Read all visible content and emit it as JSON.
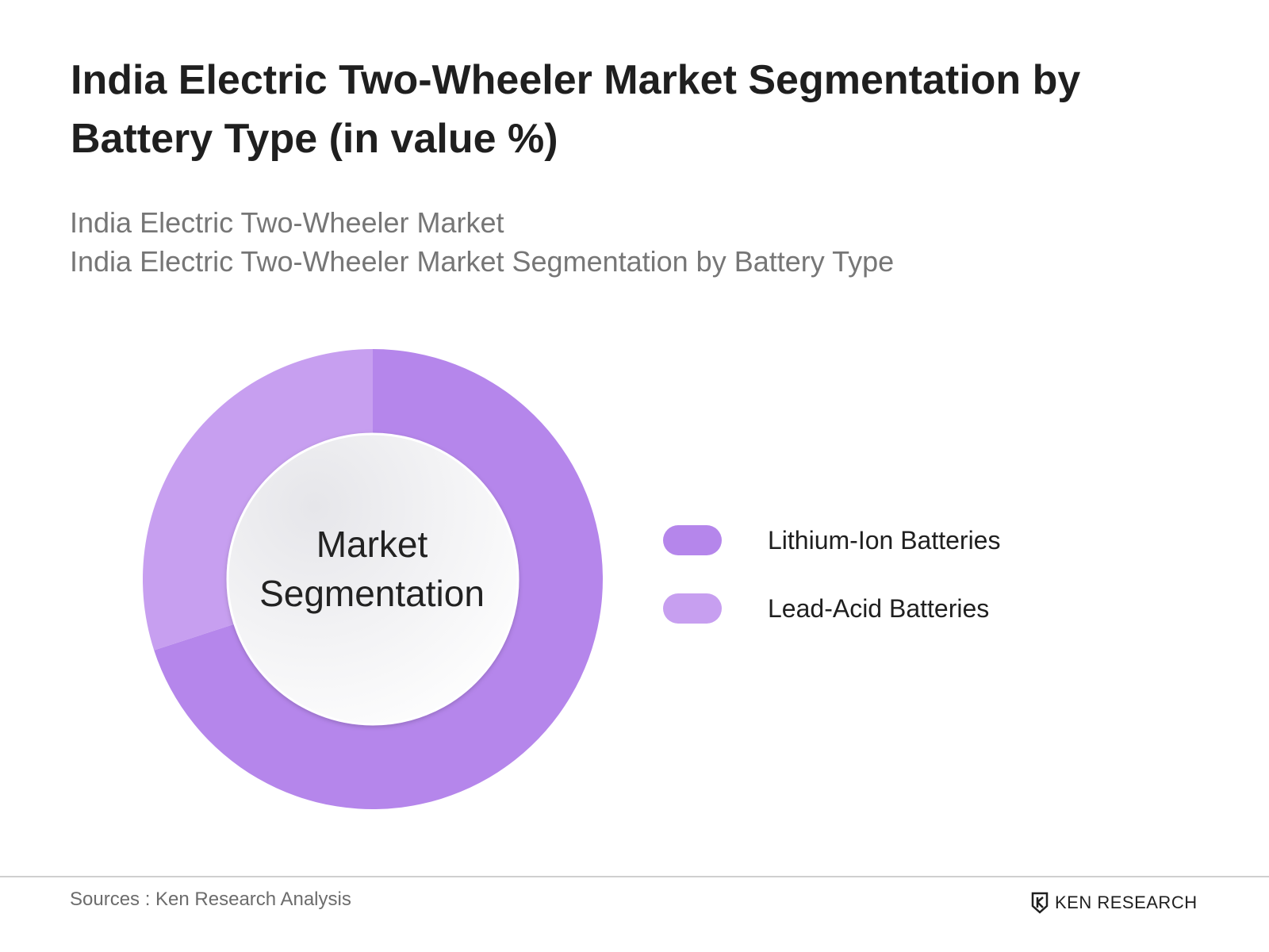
{
  "header": {
    "title": "India Electric Two-Wheeler Market Segmentation by Battery Type (in value %)",
    "subtitle_line1": "India Electric Two-Wheeler Market",
    "subtitle_line2": "India Electric Two-Wheeler Market Segmentation by Battery Type"
  },
  "chart_data": {
    "type": "pie",
    "variant": "donut",
    "center_label": [
      "Market",
      "Segmentation"
    ],
    "categories": [
      "Lithium-Ion Batteries",
      "Lead-Acid Batteries"
    ],
    "values": [
      70,
      30
    ],
    "unit": "%",
    "colors": [
      "#b586eb",
      "#c79ff0"
    ],
    "legend_position": "right"
  },
  "footer": {
    "source": "Sources : Ken Research Analysis",
    "brand": "KEN RESEARCH"
  }
}
